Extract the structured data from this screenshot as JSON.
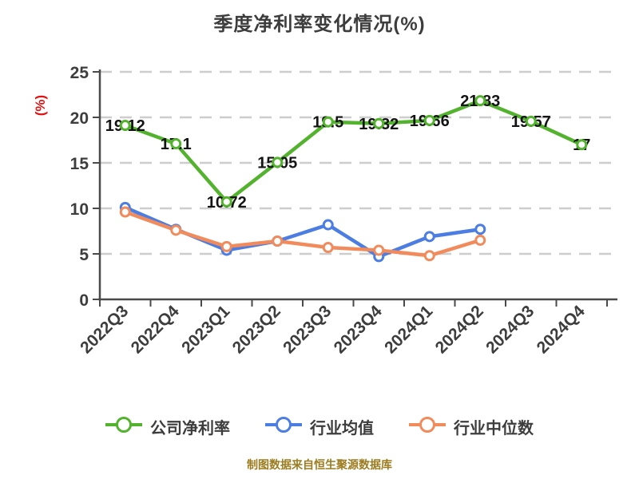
{
  "chart_data": {
    "type": "line",
    "title": "季度净利率变化情况(%)",
    "ylabel": "(%)",
    "footer": "制图数据来自恒生聚源数据库",
    "categories": [
      "2022Q3",
      "2022Q4",
      "2023Q1",
      "2023Q2",
      "2023Q3",
      "2023Q4",
      "2024Q1",
      "2024Q2",
      "2024Q3",
      "2024Q4"
    ],
    "ylim": [
      0,
      25
    ],
    "yticks": [
      0,
      5,
      10,
      15,
      20,
      25
    ],
    "grid": "horizontal-dashed",
    "legend_position": "bottom",
    "colors": {
      "company": "#54b32e",
      "industry_mean": "#4b7de2",
      "industry_median": "#f28b5b",
      "grid": "#cdcdcd",
      "axis": "#4a4a4a",
      "ylabel_red": "#e01212",
      "footer_gold": "#9c7c1f"
    },
    "series": [
      {
        "name": "公司净利率",
        "color": "#54b32e",
        "labels_shown": true,
        "values": [
          19.12,
          17.1,
          10.72,
          15.05,
          19.5,
          19.32,
          19.66,
          21.83,
          19.57,
          17
        ]
      },
      {
        "name": "行业均值",
        "color": "#4b7de2",
        "labels_shown": false,
        "values": [
          10.1,
          7.7,
          5.4,
          6.4,
          8.2,
          4.7,
          6.9,
          7.7,
          null,
          null
        ]
      },
      {
        "name": "行业中位数",
        "color": "#f28b5b",
        "labels_shown": false,
        "values": [
          9.6,
          7.6,
          5.8,
          6.4,
          5.7,
          5.4,
          4.8,
          6.5,
          null,
          null
        ]
      }
    ]
  }
}
